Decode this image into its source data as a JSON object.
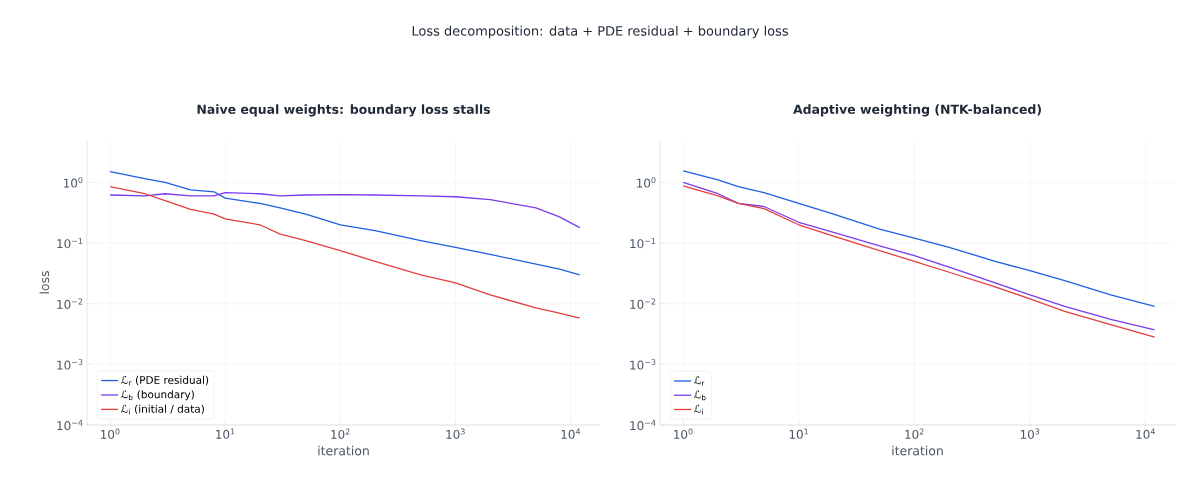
{
  "chart_data": [
    {
      "type": "line",
      "title": "Naive equal weights:  boundary loss stalls",
      "xlabel": "iteration",
      "ylabel": "loss",
      "log": "xy",
      "grid": true,
      "legend": "bottom left",
      "line_style": "solid",
      "annotations": [
        "Loss decomposition: data + PDE residual + boundary loss"
      ],
      "xlim": [
        0.63,
        18000
      ],
      "ylim": [
        0.0001,
        5
      ],
      "xticks": [
        {
          "value": 1,
          "label": "10$^{0}$"
        },
        {
          "value": 10,
          "label": "10$^{1}$"
        },
        {
          "value": 100,
          "label": "10$^{2}$"
        },
        {
          "value": 1000,
          "label": "10$^{3}$"
        },
        {
          "value": 10000,
          "label": "10$^{4}$"
        }
      ],
      "yticks": [
        {
          "value": 0.0001,
          "label": "10$^{−4}$"
        },
        {
          "value": 0.001,
          "label": "10$^{−3}$"
        },
        {
          "value": 0.01,
          "label": "10$^{−2}$"
        },
        {
          "value": 0.1,
          "label": "10$^{−1}$"
        },
        {
          "value": 1,
          "label": "10$^{0}$"
        }
      ],
      "x": [
        1,
        2,
        3,
        5,
        8,
        10,
        20,
        30,
        50,
        100,
        200,
        500,
        1000,
        2000,
        5000,
        8000,
        12000
      ],
      "series": [
        {
          "name": "ℒ$_{r}$ (PDE residual)",
          "color": "#1d5fe0",
          "values": [
            1.5,
            1.15,
            1.0,
            0.75,
            0.7,
            0.55,
            0.45,
            0.38,
            0.3,
            0.2,
            0.16,
            0.11,
            0.085,
            0.065,
            0.045,
            0.037,
            0.03
          ]
        },
        {
          "name": "ℒ$_{b}$ (boundary)",
          "color": "#7b3aed",
          "values": [
            0.62,
            0.6,
            0.65,
            0.6,
            0.6,
            0.68,
            0.65,
            0.6,
            0.62,
            0.63,
            0.62,
            0.6,
            0.58,
            0.52,
            0.38,
            0.27,
            0.18
          ]
        },
        {
          "name": "ℒ$_{i}$ (initial / data)",
          "color": "#e53e3e",
          "values": [
            0.85,
            0.65,
            0.5,
            0.36,
            0.3,
            0.25,
            0.2,
            0.14,
            0.11,
            0.075,
            0.05,
            0.03,
            0.022,
            0.014,
            0.0085,
            0.007,
            0.0058
          ]
        }
      ]
    },
    {
      "type": "line",
      "title": "Adaptive weighting (NTK-balanced)",
      "xlabel": "iteration",
      "log": "xy",
      "grid": true,
      "legend": "bottom left",
      "line_style": "solid",
      "xlim": [
        0.63,
        18000
      ],
      "ylim": [
        0.0001,
        5
      ],
      "xticks": [
        {
          "value": 1,
          "label": "10$^{0}$"
        },
        {
          "value": 10,
          "label": "10$^{1}$"
        },
        {
          "value": 100,
          "label": "10$^{2}$"
        },
        {
          "value": 1000,
          "label": "10$^{3}$"
        },
        {
          "value": 10000,
          "label": "10$^{4}$"
        }
      ],
      "yticks": [
        {
          "value": 0.0001,
          "label": "10$^{−4}$"
        },
        {
          "value": 0.001,
          "label": "10$^{−3}$"
        },
        {
          "value": 0.01,
          "label": "10$^{−2}$"
        },
        {
          "value": 0.1,
          "label": "10$^{−1}$"
        },
        {
          "value": 1,
          "label": "10$^{0}$"
        }
      ],
      "x": [
        1,
        2,
        3,
        5,
        10,
        20,
        50,
        100,
        200,
        500,
        1000,
        2000,
        5000,
        12000
      ],
      "series": [
        {
          "name": "ℒ$_{r}$",
          "color": "#1d5fe0",
          "values": [
            1.55,
            1.1,
            0.85,
            0.68,
            0.45,
            0.3,
            0.17,
            0.12,
            0.085,
            0.05,
            0.035,
            0.024,
            0.014,
            0.009
          ]
        },
        {
          "name": "ℒ$_{b}$",
          "color": "#7b3aed",
          "values": [
            1.0,
            0.65,
            0.45,
            0.4,
            0.22,
            0.15,
            0.09,
            0.062,
            0.04,
            0.022,
            0.014,
            0.009,
            0.0055,
            0.0037
          ]
        },
        {
          "name": "ℒ$_{i}$",
          "color": "#e53e3e",
          "values": [
            0.88,
            0.6,
            0.45,
            0.37,
            0.2,
            0.13,
            0.075,
            0.05,
            0.033,
            0.019,
            0.012,
            0.0075,
            0.0045,
            0.0028
          ]
        }
      ]
    }
  ]
}
